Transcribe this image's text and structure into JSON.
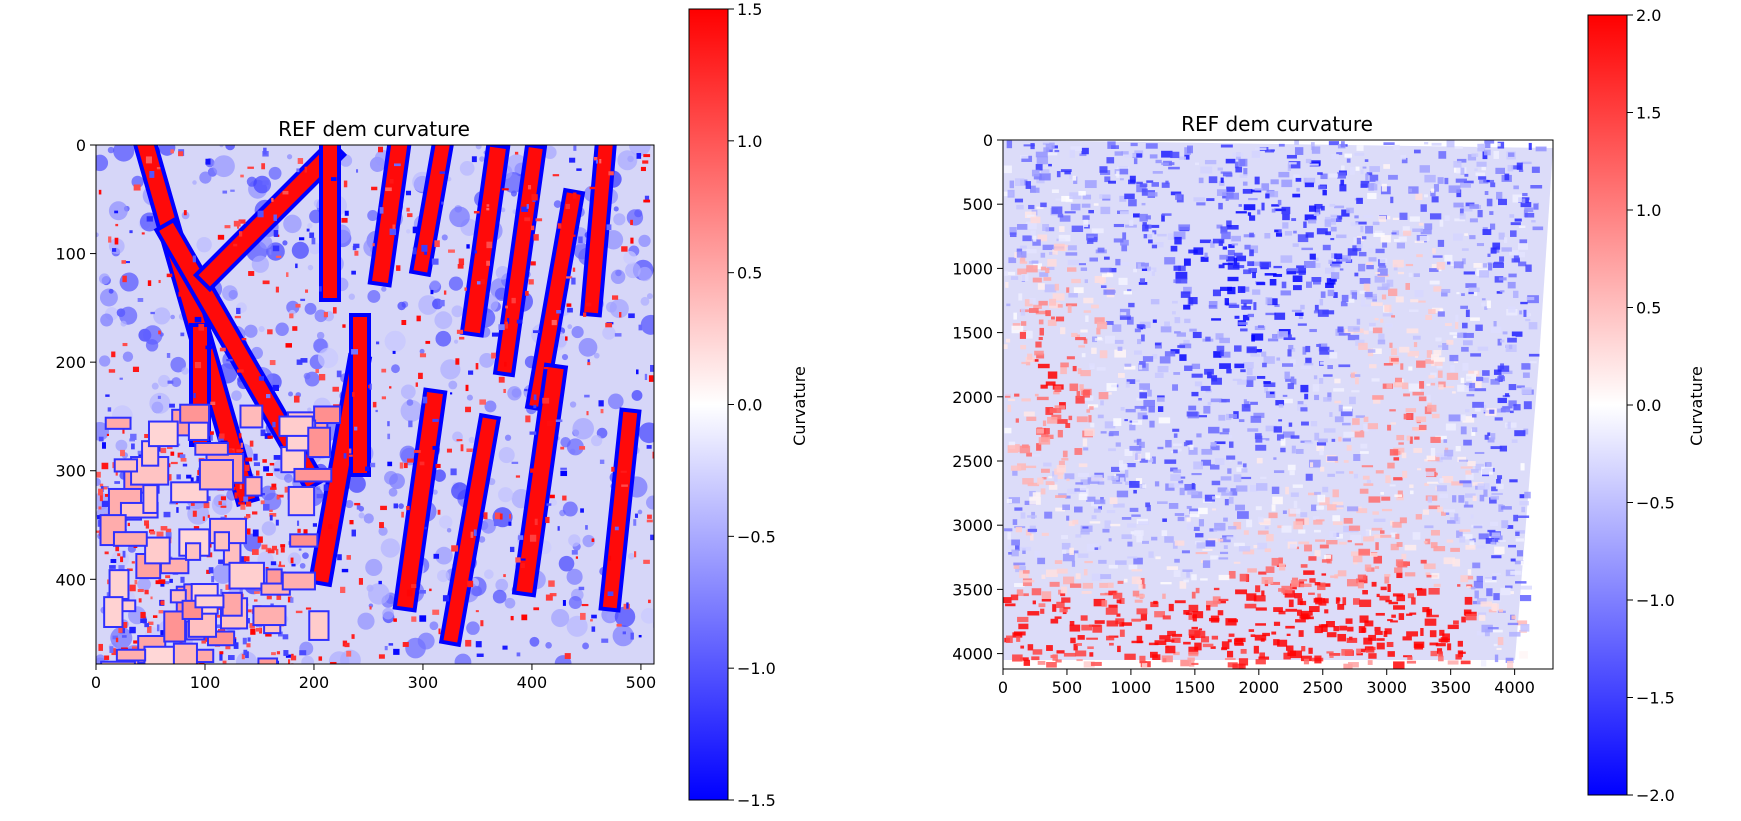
{
  "chart_data": [
    {
      "type": "heatmap",
      "title": "REF dem curvature",
      "xlabel": "",
      "ylabel": "",
      "x_ticks": [
        0,
        100,
        200,
        300,
        400,
        500
      ],
      "y_ticks": [
        0,
        100,
        200,
        300,
        400
      ],
      "xlim": [
        0,
        512
      ],
      "ylim": [
        478,
        0
      ],
      "colormap": "bwr",
      "colormap_colors": [
        "#0000ff",
        "#ffffff",
        "#ff0000"
      ],
      "colorbar": {
        "label": "Curvature",
        "range": [
          -1.5,
          1.5
        ],
        "ticks": [
          "1.5",
          "1.0",
          "0.5",
          "0.0",
          "−0.5",
          "−1.0",
          "−1.5"
        ],
        "tick_values": [
          1.5,
          1.0,
          0.5,
          0.0,
          -0.5,
          -1.0,
          -1.5
        ]
      }
    },
    {
      "type": "heatmap",
      "title": "REF dem curvature",
      "xlabel": "",
      "ylabel": "",
      "x_ticks": [
        0,
        500,
        1000,
        1500,
        2000,
        2500,
        3000,
        3500,
        4000
      ],
      "y_ticks": [
        0,
        500,
        1000,
        1500,
        2000,
        2500,
        3000,
        3500,
        4000
      ],
      "xlim": [
        0,
        4300
      ],
      "ylim": [
        4120,
        0
      ],
      "colormap": "bwr",
      "colormap_colors": [
        "#0000ff",
        "#ffffff",
        "#ff0000"
      ],
      "colorbar": {
        "label": "Curvature",
        "range": [
          -2.0,
          2.0
        ],
        "ticks": [
          "2.0",
          "1.5",
          "1.0",
          "0.5",
          "0.0",
          "−0.5",
          "−1.0",
          "−1.5",
          "−2.0"
        ],
        "tick_values": [
          2.0,
          1.5,
          1.0,
          0.5,
          0.0,
          -0.5,
          -1.0,
          -1.5,
          -2.0
        ]
      }
    }
  ]
}
